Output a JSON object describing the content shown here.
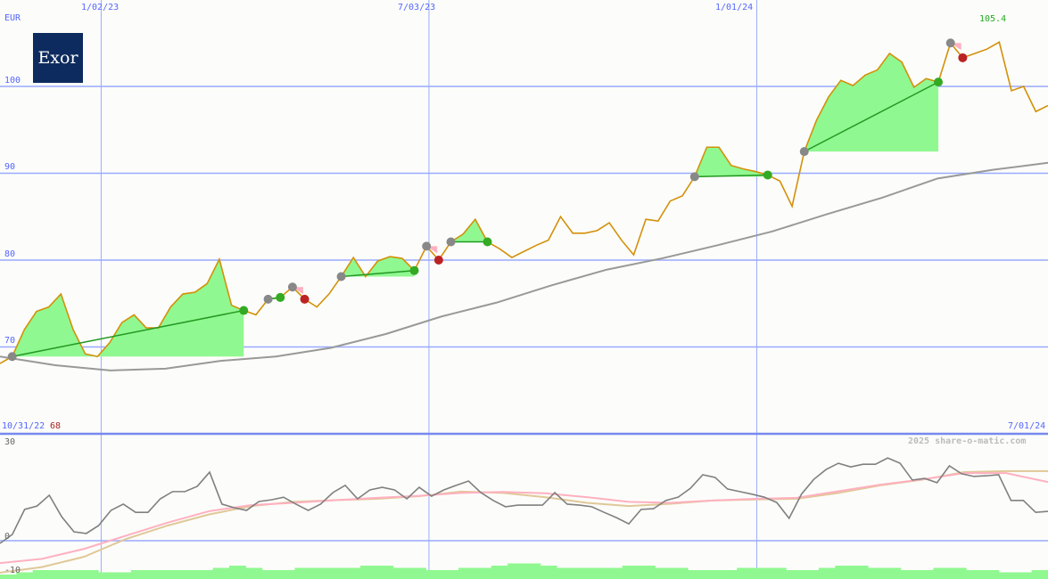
{
  "logo_text": "Exor",
  "currency": "EUR",
  "watermark": "2025 share-o-matic.com",
  "start_date": "10/31/22",
  "start_price_label": "68",
  "end_date": "7/01/24",
  "last_high_label": "105.4",
  "colors": {
    "price": "#d4900a",
    "ma": "#999999",
    "grid": "#99aaff",
    "win": "#90f890",
    "loss": "#ffb0c0",
    "volume": "#90f890",
    "osc": "#808080",
    "osc_pink": "#ffb0c0",
    "osc_tan": "#e0c898",
    "label_blue": "#5566ff",
    "label_red": "#aa2222",
    "label_green": "#22aa22"
  },
  "chart_data": [
    {
      "type": "line",
      "title": "",
      "ylabel": "EUR",
      "ylim": [
        66.1,
        110
      ],
      "yticks": [
        "100",
        "90",
        "80",
        "70"
      ],
      "ytick_values": [
        100,
        90,
        80,
        70
      ],
      "xticks": [
        "1/02/23",
        "7/03/23",
        "1/01/24"
      ],
      "xtick_index": [
        8.3,
        35.2,
        62.1
      ],
      "grid": true,
      "series": [
        {
          "key": "price",
          "values": [
            68.1,
            68.9,
            72.0,
            74.1,
            74.6,
            76.1,
            72.0,
            69.2,
            68.9,
            70.5,
            72.8,
            73.7,
            72.2,
            72.2,
            74.6,
            76.1,
            76.3,
            77.3,
            80.1,
            74.8,
            74.2,
            73.7,
            75.5,
            75.7,
            76.9,
            75.5,
            74.6,
            76.1,
            78.1,
            80.3,
            78.1,
            79.9,
            80.4,
            80.2,
            78.8,
            81.6,
            80.0,
            82.1,
            83.0,
            84.7,
            82.1,
            81.3,
            80.3,
            81.0,
            81.7,
            82.3,
            85.0,
            83.1,
            83.1,
            83.4,
            84.3,
            82.3,
            80.6,
            84.7,
            84.5,
            86.8,
            87.4,
            89.6,
            93.0,
            93.0,
            90.9,
            90.5,
            90.2,
            89.8,
            89.1,
            86.2,
            92.5,
            96.1,
            98.8,
            100.7,
            100.1,
            101.3,
            101.9,
            103.8,
            102.8,
            99.9,
            100.9,
            100.5,
            105.0,
            103.3,
            103.8,
            104.3,
            105.1,
            99.5,
            100.0,
            97.1,
            97.8
          ]
        },
        {
          "key": "moving_average",
          "values": [
            68.9,
            67.9,
            67.3,
            67.5,
            68.4,
            68.9,
            69.9,
            71.5,
            73.5,
            75.1,
            77.1,
            78.9,
            80.2,
            81.7,
            83.3,
            85.3,
            87.2,
            89.4,
            90.4,
            91.2
          ]
        }
      ],
      "trades": [
        {
          "entry": 1,
          "exit": 20,
          "result": "win"
        },
        {
          "entry": 22,
          "exit": 23,
          "result": "win"
        },
        {
          "entry": 24,
          "exit": 25,
          "result": "loss"
        },
        {
          "entry": 28,
          "exit": 34,
          "result": "win"
        },
        {
          "entry": 35,
          "exit": 36,
          "result": "loss"
        },
        {
          "entry": 37,
          "exit": 40,
          "result": "win"
        },
        {
          "entry": 57,
          "exit": 63,
          "result": "win"
        },
        {
          "entry": 66,
          "exit": 77,
          "result": "win"
        },
        {
          "entry": 78,
          "exit": 79,
          "result": "loss"
        }
      ]
    },
    {
      "type": "line",
      "title": "",
      "ylim": [
        -11.5,
        32
      ],
      "yticks": [
        "30",
        "0",
        "-10"
      ],
      "ytick_values": [
        30,
        0,
        -10
      ],
      "grid": true,
      "series": [
        {
          "key": "oscillator",
          "values": [
            -0.8,
            1.9,
            9.5,
            10.5,
            13.8,
            7.3,
            2.7,
            2.2,
            4.6,
            9.2,
            11.1,
            8.6,
            8.6,
            12.7,
            14.9,
            14.9,
            16.5,
            20.8,
            11.1,
            10.0,
            9.2,
            11.9,
            12.4,
            13.2,
            11.1,
            9.2,
            11.1,
            14.6,
            16.8,
            12.7,
            15.4,
            16.2,
            15.4,
            12.7,
            16.2,
            13.5,
            15.4,
            16.8,
            18.1,
            14.6,
            12.2,
            10.3,
            10.8,
            10.8,
            10.8,
            14.6,
            11.1,
            10.8,
            10.3,
            8.6,
            7.0,
            5.1,
            9.5,
            9.7,
            12.2,
            13.2,
            15.9,
            20.0,
            19.2,
            15.7,
            14.9,
            14.1,
            13.2,
            11.6,
            6.8,
            14.1,
            18.6,
            21.6,
            23.5,
            22.4,
            23.2,
            23.2,
            25.1,
            23.5,
            18.4,
            18.9,
            17.6,
            22.7,
            20.3,
            19.5,
            19.7,
            20.0,
            12.2,
            12.2,
            8.6,
            8.9
          ]
        },
        {
          "key": "signal_pink",
          "values": [
            -6.8,
            -5.5,
            -2.5,
            1.5,
            5.5,
            9.0,
            10.8,
            11.5,
            12.3,
            13.0,
            13.6,
            14.5,
            14.8,
            14.4,
            13.2,
            11.8,
            11.5,
            12.2,
            12.7,
            13.0,
            15.0,
            17.0,
            18.6,
            20.5,
            20.5,
            17.8
          ]
        },
        {
          "key": "signal_tan",
          "values": [
            -9.7,
            -8.0,
            -4.9,
            0.5,
            4.6,
            8.0,
            10.5,
            11.8,
            12.3,
            12.7,
            13.5,
            14.9,
            14.5,
            13.2,
            11.5,
            10.5,
            11.2,
            12.2,
            12.5,
            12.7,
            14.5,
            16.8,
            18.5,
            20.8,
            21.1,
            21.1
          ]
        },
        {
          "key": "volume",
          "values": [
            2,
            3,
            4,
            4,
            4,
            4,
            3,
            3,
            4,
            4,
            4,
            4,
            4,
            5,
            6,
            5,
            4,
            4,
            5,
            5,
            5,
            5,
            6,
            6,
            5,
            5,
            4,
            4,
            5,
            5,
            6,
            7,
            7,
            6,
            5,
            5,
            5,
            5,
            6,
            6,
            5,
            5,
            4,
            4,
            4,
            5,
            5,
            5,
            4,
            4,
            5,
            6,
            6,
            5,
            5,
            4,
            4,
            5,
            5,
            4,
            4,
            3,
            3,
            4
          ]
        }
      ]
    }
  ]
}
